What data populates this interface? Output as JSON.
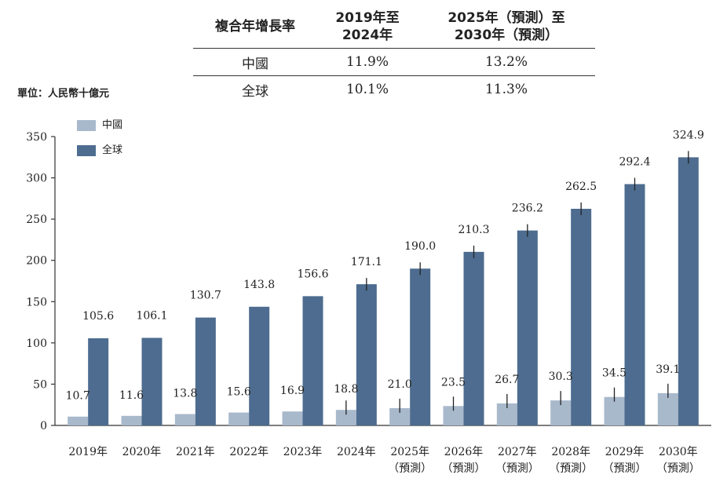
{
  "cagr_table": {
    "header": {
      "label": "複合年增長率",
      "col1": "2019年至\n2024年",
      "col2": "2025年（預測）至\n2030年（預測）"
    },
    "rows": [
      {
        "label": "中國",
        "v1": "11.9%",
        "v2": "13.2%"
      },
      {
        "label": "全球",
        "v1": "10.1%",
        "v2": "11.3%"
      }
    ]
  },
  "chart_data": {
    "type": "bar",
    "unit_label": "單位：人民幣十億元",
    "categories": [
      [
        "2019年"
      ],
      [
        "2020年"
      ],
      [
        "2021年"
      ],
      [
        "2022年"
      ],
      [
        "2023年"
      ],
      [
        "2024年"
      ],
      [
        "2025年",
        "（預測）"
      ],
      [
        "2026年",
        "（預測）"
      ],
      [
        "2027年",
        "（預測）"
      ],
      [
        "2028年",
        "（預測）"
      ],
      [
        "2029年",
        "（預測）"
      ],
      [
        "2030年",
        "（預測）"
      ]
    ],
    "series": [
      {
        "name": "中國",
        "color": "#a9b9cc",
        "values": [
          10.7,
          11.6,
          13.8,
          15.6,
          16.9,
          18.8,
          21.0,
          23.5,
          26.7,
          30.3,
          34.5,
          39.1
        ],
        "labels": [
          "10.7",
          "11.6",
          "13.8",
          "15.6",
          "16.9",
          "18.8",
          "21.0",
          "23.5",
          "26.7",
          "30.3",
          "34.5",
          "39.1"
        ]
      },
      {
        "name": "全球",
        "color": "#4d6c8f",
        "values": [
          105.6,
          106.1,
          130.7,
          143.8,
          156.6,
          171.1,
          190.0,
          210.3,
          236.2,
          262.5,
          292.4,
          324.9
        ],
        "labels": [
          "105.6",
          "106.1",
          "130.7",
          "143.8",
          "156.6",
          "171.1",
          "190.0",
          "210.3",
          "236.2",
          "262.5",
          "292.4",
          "324.9"
        ]
      }
    ],
    "ylim": [
      0,
      350
    ],
    "yticks": [
      0,
      50,
      100,
      150,
      200,
      250,
      300,
      350
    ],
    "yticks_labels": [
      "0",
      "50",
      "100",
      "150",
      "200",
      "250",
      "300",
      "350"
    ],
    "legend_placement": "top-left",
    "grid": false
  }
}
